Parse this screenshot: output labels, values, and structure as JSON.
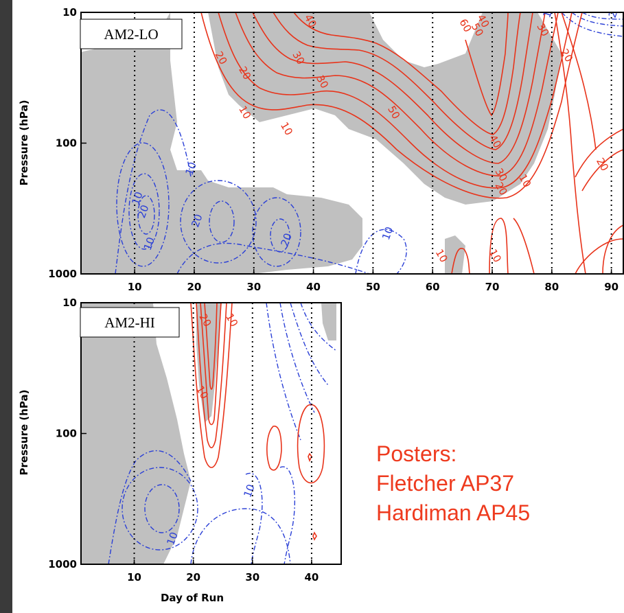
{
  "chart_data": [
    {
      "type": "contour",
      "title": "AM2-LO",
      "xlabel": "",
      "ylabel": "Pressure (hPa)",
      "xlim": [
        1,
        92
      ],
      "ylim": [
        1000,
        10
      ],
      "y_scale": "log",
      "x_ticks": [
        10,
        20,
        30,
        40,
        50,
        60,
        70,
        80,
        90
      ],
      "y_ticks": [
        10,
        100,
        1000
      ],
      "x_tick_labels": [
        "10",
        "20",
        "30",
        "40",
        "50",
        "60",
        "70",
        "80",
        "90"
      ],
      "y_tick_labels": [
        "10",
        "100",
        "1000"
      ],
      "vertical_dotted_lines": [
        10,
        20,
        30,
        40,
        50,
        60,
        70,
        80,
        90
      ],
      "positive_color": "#e8331a",
      "negative_color": "#2a3fd6",
      "shading_color": "#c0c0c0",
      "contour_labels": [
        {
          "text": "20",
          "sign": "negative",
          "x": 91,
          "y": 10
        },
        {
          "text": "10",
          "sign": "negative",
          "x": 11,
          "y": 270
        },
        {
          "text": "20",
          "sign": "negative",
          "x": 12,
          "y": 340
        },
        {
          "text": "10",
          "sign": "negative",
          "x": 20,
          "y": 160
        },
        {
          "text": "20",
          "sign": "negative",
          "x": 21,
          "y": 400
        },
        {
          "text": "10",
          "sign": "negative",
          "x": 13,
          "y": 600
        },
        {
          "text": "20",
          "sign": "negative",
          "x": 36,
          "y": 560
        },
        {
          "text": "10",
          "sign": "negative",
          "x": 53,
          "y": 500
        },
        {
          "text": "10",
          "sign": "negative",
          "x": 80,
          "y": 10
        },
        {
          "text": "20",
          "sign": "positive",
          "x": 24,
          "y": 23
        },
        {
          "text": "20",
          "sign": "positive",
          "x": 28,
          "y": 30
        },
        {
          "text": "10",
          "sign": "positive",
          "x": 28,
          "y": 60
        },
        {
          "text": "10",
          "sign": "positive",
          "x": 35,
          "y": 80
        },
        {
          "text": "40",
          "sign": "positive",
          "x": 39,
          "y": 12
        },
        {
          "text": "30",
          "sign": "positive",
          "x": 37,
          "y": 23
        },
        {
          "text": "30",
          "sign": "positive",
          "x": 41,
          "y": 35
        },
        {
          "text": "50",
          "sign": "positive",
          "x": 53,
          "y": 60
        },
        {
          "text": "60",
          "sign": "positive",
          "x": 65,
          "y": 13
        },
        {
          "text": "50",
          "sign": "positive",
          "x": 67,
          "y": 14
        },
        {
          "text": "40",
          "sign": "positive",
          "x": 68,
          "y": 12
        },
        {
          "text": "40",
          "sign": "positive",
          "x": 70,
          "y": 100
        },
        {
          "text": "30",
          "sign": "positive",
          "x": 71,
          "y": 180
        },
        {
          "text": "20",
          "sign": "positive",
          "x": 71,
          "y": 230
        },
        {
          "text": "10",
          "sign": "positive",
          "x": 75,
          "y": 200
        },
        {
          "text": "30",
          "sign": "positive",
          "x": 78,
          "y": 14
        },
        {
          "text": "20",
          "sign": "positive",
          "x": 82,
          "y": 22
        },
        {
          "text": "20",
          "sign": "positive",
          "x": 88,
          "y": 150
        },
        {
          "text": "10",
          "sign": "positive",
          "x": 61,
          "y": 750
        },
        {
          "text": "10",
          "sign": "positive",
          "x": 70,
          "y": 750
        }
      ]
    },
    {
      "type": "contour",
      "title": "AM2-HI",
      "xlabel": "Day of Run",
      "ylabel": "Pressure (hPa)",
      "xlim": [
        1,
        45
      ],
      "ylim": [
        1000,
        10
      ],
      "y_scale": "log",
      "x_ticks": [
        10,
        20,
        30,
        40
      ],
      "y_ticks": [
        10,
        100,
        1000
      ],
      "x_tick_labels": [
        "10",
        "20",
        "30",
        "40"
      ],
      "y_tick_labels": [
        "10",
        "100",
        "1000"
      ],
      "vertical_dotted_lines": [
        10,
        20,
        30,
        40
      ],
      "positive_color": "#e8331a",
      "negative_color": "#2a3fd6",
      "shading_color": "#c0c0c0",
      "contour_labels": [
        {
          "text": "20",
          "sign": "positive",
          "x": 21.5,
          "y": 14
        },
        {
          "text": "10",
          "sign": "positive",
          "x": 26,
          "y": 14
        },
        {
          "text": "10",
          "sign": "positive",
          "x": 21,
          "y": 50
        },
        {
          "text": "10",
          "sign": "negative",
          "x": 30,
          "y": 280
        },
        {
          "text": "10",
          "sign": "negative",
          "x": 17,
          "y": 650
        }
      ]
    }
  ],
  "annotation": {
    "lines": [
      "Posters:",
      "Fletcher AP37",
      "Hardiman AP45"
    ],
    "color": "#ee3a1e"
  }
}
